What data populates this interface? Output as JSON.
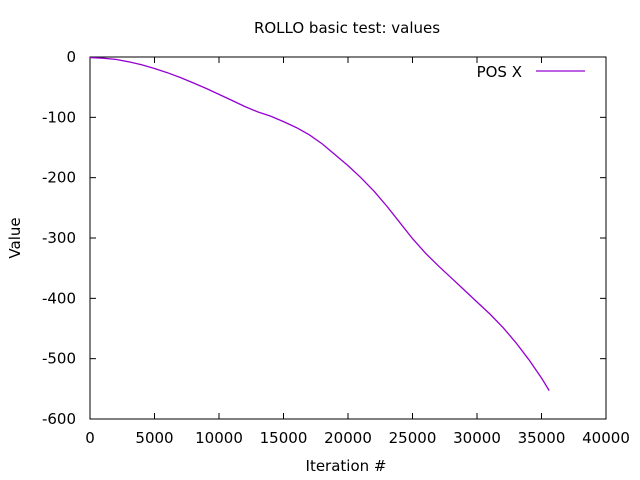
{
  "chart_data": {
    "type": "line",
    "title": "ROLLO  basic test: values",
    "xlabel": "Iteration #",
    "ylabel": "Value",
    "xlim": [
      0,
      40000
    ],
    "ylim": [
      -600,
      0
    ],
    "xticks": [
      0,
      5000,
      10000,
      15000,
      20000,
      25000,
      30000,
      35000,
      40000
    ],
    "yticks": [
      0,
      -100,
      -200,
      -300,
      -400,
      -500,
      -600
    ],
    "grid": false,
    "legend_position": "top-right",
    "series": [
      {
        "name": "POS X",
        "color": "#9400d3",
        "x": [
          0,
          1000,
          2000,
          3000,
          4000,
          5000,
          6000,
          7000,
          8000,
          9000,
          10000,
          11000,
          12000,
          13000,
          14000,
          15000,
          16000,
          17000,
          18000,
          19000,
          20000,
          21000,
          22000,
          23000,
          24000,
          25000,
          26000,
          27000,
          28000,
          29000,
          30000,
          31000,
          32000,
          33000,
          34000,
          35000,
          35600
        ],
        "y": [
          -1,
          -2,
          -4,
          -8,
          -13,
          -19,
          -26,
          -34,
          -43,
          -52,
          -62,
          -72,
          -82,
          -91,
          -98,
          -107,
          -117,
          -129,
          -144,
          -162,
          -180,
          -200,
          -222,
          -247,
          -274,
          -301,
          -325,
          -346,
          -366,
          -386,
          -406,
          -426,
          -448,
          -473,
          -501,
          -532,
          -553
        ]
      }
    ]
  }
}
